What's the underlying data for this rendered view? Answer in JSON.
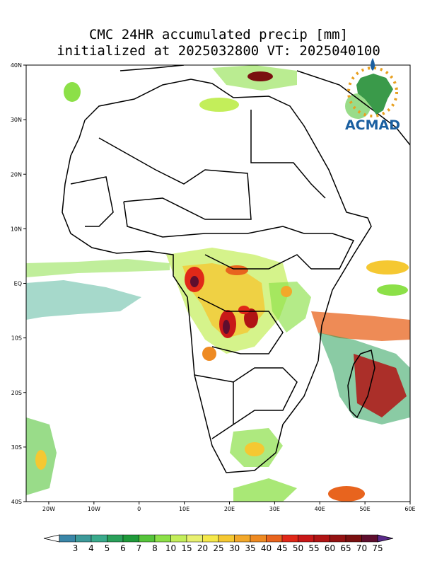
{
  "title": {
    "line1": "CMC 24HR accumulated precip [mm]",
    "line2": "initialized at 2025032800 VT: 2025040100"
  },
  "logo": {
    "text": "ACMAD"
  },
  "map": {
    "lon_range": [
      -25,
      60
    ],
    "lat_range": [
      -40,
      40
    ],
    "lat_ticks": [
      {
        "value": 40,
        "label": "40N"
      },
      {
        "value": 30,
        "label": "30N"
      },
      {
        "value": 20,
        "label": "20N"
      },
      {
        "value": 10,
        "label": "10N"
      },
      {
        "value": 0,
        "label": "EQ"
      },
      {
        "value": -10,
        "label": "10S"
      },
      {
        "value": -20,
        "label": "20S"
      },
      {
        "value": -30,
        "label": "30S"
      },
      {
        "value": -40,
        "label": "40S"
      }
    ],
    "lon_ticks": [
      {
        "value": -20,
        "label": "20W"
      },
      {
        "value": -10,
        "label": "10W"
      },
      {
        "value": 0,
        "label": "0"
      },
      {
        "value": 10,
        "label": "10E"
      },
      {
        "value": 20,
        "label": "20E"
      },
      {
        "value": 30,
        "label": "30E"
      },
      {
        "value": 40,
        "label": "40E"
      },
      {
        "value": 50,
        "label": "50E"
      },
      {
        "value": 60,
        "label": "60E"
      }
    ]
  },
  "colorbar": {
    "levels": [
      "3",
      "4",
      "5",
      "6",
      "7",
      "8",
      "10",
      "15",
      "20",
      "25",
      "30",
      "35",
      "40",
      "45",
      "50",
      "55",
      "60",
      "65",
      "70",
      "75"
    ],
    "colors": [
      "#3a86a8",
      "#3d9a9a",
      "#3aaa8c",
      "#2aa05a",
      "#1f9a3a",
      "#55c43a",
      "#8ce048",
      "#c3ee5a",
      "#e8f070",
      "#f5e84a",
      "#f5c832",
      "#f2a82a",
      "#ee8a22",
      "#e8641e",
      "#e02818",
      "#c81818",
      "#b01414",
      "#941212",
      "#7a1010",
      "#5e0e2e"
    ]
  }
}
